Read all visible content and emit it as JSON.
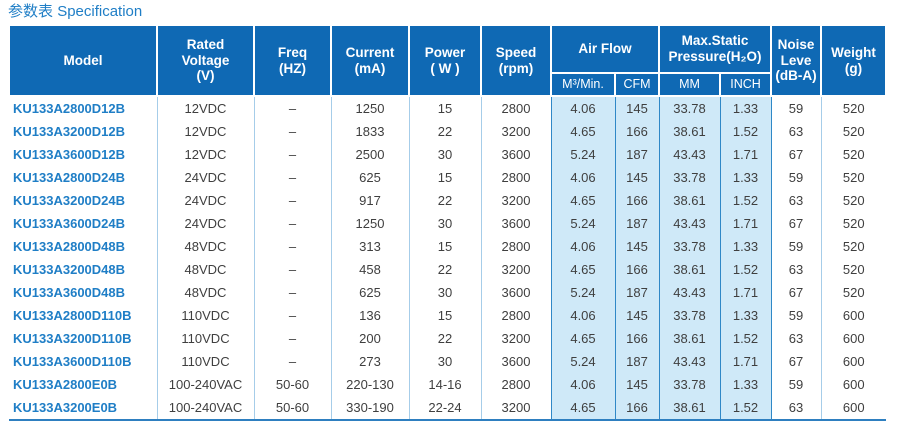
{
  "title": {
    "zh": "参数表",
    "en": "Specification"
  },
  "colors": {
    "header_bg": "#0f69b4",
    "tint_bg": "#cfe9f8",
    "accent_text": "#1f7ec6",
    "divider_light": "#a6cde9",
    "divider_medium": "#2f88c7",
    "bottom_rule": "#2e7fc0",
    "body_text": "#3f3f3f"
  },
  "table": {
    "headers": {
      "model": "Model",
      "rated_voltage": "Rated\nVoltage\n(V)",
      "freq": "Freq\n(HZ)",
      "current": "Current\n(mA)",
      "power": "Power\n( W )",
      "speed": "Speed\n(rpm)",
      "air_flow": "Air Flow",
      "max_static_pressure": "Max.Static\nPressure(H₂O)",
      "noise": "Noise\nLeve\n(dB-A)",
      "weight": "Weight\n(g)"
    },
    "subheaders": {
      "m3min": "M³/Min.",
      "cfm": "CFM",
      "mm": "MM",
      "inch": "INCH"
    },
    "columns": [
      {
        "key": "model",
        "cls": "model"
      },
      {
        "key": "rated-voltage",
        "cls": ""
      },
      {
        "key": "freq",
        "cls": ""
      },
      {
        "key": "current",
        "cls": ""
      },
      {
        "key": "power",
        "cls": ""
      },
      {
        "key": "speed",
        "cls": "pre-tint"
      },
      {
        "key": "airflow-m3min",
        "cls": "tint"
      },
      {
        "key": "airflow-cfm",
        "cls": "tint"
      },
      {
        "key": "pressure-mm",
        "cls": "tint"
      },
      {
        "key": "pressure-inch",
        "cls": "tint"
      },
      {
        "key": "noise",
        "cls": ""
      },
      {
        "key": "weight",
        "cls": "last"
      }
    ],
    "rows": [
      [
        "KU133A2800D12B",
        "12VDC",
        "–",
        "1250",
        "15",
        "2800",
        "4.06",
        "145",
        "33.78",
        "1.33",
        "59",
        "520"
      ],
      [
        "KU133A3200D12B",
        "12VDC",
        "–",
        "1833",
        "22",
        "3200",
        "4.65",
        "166",
        "38.61",
        "1.52",
        "63",
        "520"
      ],
      [
        "KU133A3600D12B",
        "12VDC",
        "–",
        "2500",
        "30",
        "3600",
        "5.24",
        "187",
        "43.43",
        "1.71",
        "67",
        "520"
      ],
      [
        "KU133A2800D24B",
        "24VDC",
        "–",
        "625",
        "15",
        "2800",
        "4.06",
        "145",
        "33.78",
        "1.33",
        "59",
        "520"
      ],
      [
        "KU133A3200D24B",
        "24VDC",
        "–",
        "917",
        "22",
        "3200",
        "4.65",
        "166",
        "38.61",
        "1.52",
        "63",
        "520"
      ],
      [
        "KU133A3600D24B",
        "24VDC",
        "–",
        "1250",
        "30",
        "3600",
        "5.24",
        "187",
        "43.43",
        "1.71",
        "67",
        "520"
      ],
      [
        "KU133A2800D48B",
        "48VDC",
        "–",
        "313",
        "15",
        "2800",
        "4.06",
        "145",
        "33.78",
        "1.33",
        "59",
        "520"
      ],
      [
        "KU133A3200D48B",
        "48VDC",
        "–",
        "458",
        "22",
        "3200",
        "4.65",
        "166",
        "38.61",
        "1.52",
        "63",
        "520"
      ],
      [
        "KU133A3600D48B",
        "48VDC",
        "–",
        "625",
        "30",
        "3600",
        "5.24",
        "187",
        "43.43",
        "1.71",
        "67",
        "520"
      ],
      [
        "KU133A2800D110B",
        "110VDC",
        "–",
        "136",
        "15",
        "2800",
        "4.06",
        "145",
        "33.78",
        "1.33",
        "59",
        "600"
      ],
      [
        "KU133A3200D110B",
        "110VDC",
        "–",
        "200",
        "22",
        "3200",
        "4.65",
        "166",
        "38.61",
        "1.52",
        "63",
        "600"
      ],
      [
        "KU133A3600D110B",
        "110VDC",
        "–",
        "273",
        "30",
        "3600",
        "5.24",
        "187",
        "43.43",
        "1.71",
        "67",
        "600"
      ],
      [
        "KU133A2800E0B",
        "100-240VAC",
        "50-60",
        "220-130",
        "14-16",
        "2800",
        "4.06",
        "145",
        "33.78",
        "1.33",
        "59",
        "600"
      ],
      [
        "KU133A3200E0B",
        "100-240VAC",
        "50-60",
        "330-190",
        "22-24",
        "3200",
        "4.65",
        "166",
        "38.61",
        "1.52",
        "63",
        "600"
      ]
    ]
  }
}
